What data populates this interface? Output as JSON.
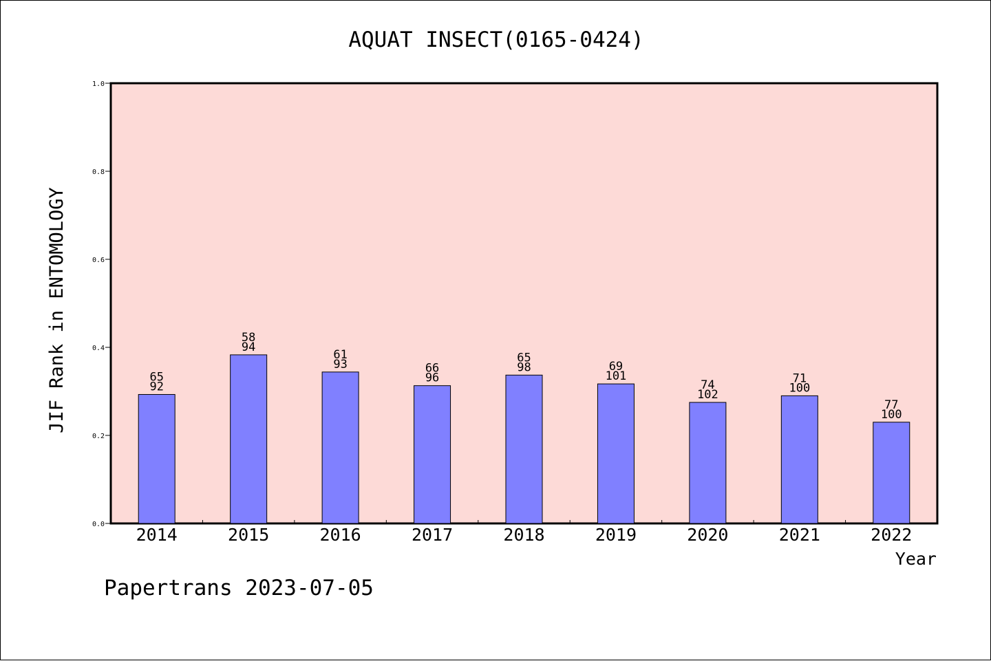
{
  "chart_data": {
    "type": "bar",
    "title": "AQUAT INSECT(0165-0424)",
    "xlabel": "Year",
    "ylabel": "JIF Rank in ENTOMOLOGY",
    "ylim": [
      0,
      1.0
    ],
    "yticks": [
      "0.0",
      "0.2",
      "0.4",
      "0.6",
      "0.8",
      "1.0"
    ],
    "grid": false,
    "categories": [
      "2014",
      "2015",
      "2016",
      "2017",
      "2018",
      "2019",
      "2020",
      "2021",
      "2022"
    ],
    "values": [
      0.293,
      0.383,
      0.344,
      0.313,
      0.337,
      0.317,
      0.275,
      0.29,
      0.23
    ],
    "rank_labels": [
      "65",
      "58",
      "61",
      "66",
      "65",
      "69",
      "74",
      "71",
      "77"
    ],
    "total_labels": [
      "92",
      "94",
      "93",
      "96",
      "98",
      "101",
      "102",
      "100",
      "100"
    ],
    "footer": "Papertrans 2023-07-05",
    "colors": {
      "plot_background": "#fddad7",
      "bar_fill": "#8080ff",
      "bar_stroke": "#000000",
      "axis": "#000000"
    }
  }
}
